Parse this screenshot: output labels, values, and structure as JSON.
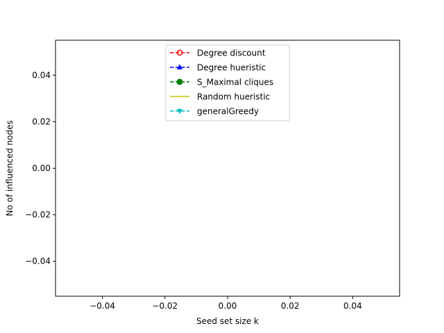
{
  "chart_data": {
    "type": "line",
    "title": "",
    "xlabel": "Seed set size k",
    "ylabel": "No of influenced nodes",
    "xlim": [
      -0.055,
      0.055
    ],
    "ylim": [
      -0.055,
      0.055
    ],
    "x_ticks": [
      -0.04,
      -0.02,
      0.0,
      0.02,
      0.04
    ],
    "x_tick_labels": [
      "−0.04",
      "−0.02",
      "0.00",
      "0.02",
      "0.04"
    ],
    "y_ticks": [
      -0.04,
      -0.02,
      0.0,
      0.02,
      0.04
    ],
    "y_tick_labels": [
      "−0.04",
      "−0.02",
      "0.00",
      "0.02",
      "0.04"
    ],
    "grid": false,
    "legend_position": "top-center",
    "series": [
      {
        "name": "Degree discount",
        "color": "#ff0000",
        "linestyle": "dashed",
        "marker": "circle-open",
        "x": [],
        "y": []
      },
      {
        "name": "Degree hueristic",
        "color": "#0000ff",
        "linestyle": "dashed",
        "marker": "triangle-up",
        "x": [],
        "y": []
      },
      {
        "name": "S_Maximal cliques",
        "color": "#008000",
        "linestyle": "dashed",
        "marker": "circle",
        "x": [],
        "y": []
      },
      {
        "name": "Random hueristic",
        "color": "#bfbf00",
        "linestyle": "solid",
        "marker": "none",
        "x": [],
        "y": []
      },
      {
        "name": "generalGreedy",
        "color": "#00bfbf",
        "linestyle": "dashed",
        "marker": "triangle-down",
        "x": [],
        "y": []
      }
    ]
  }
}
